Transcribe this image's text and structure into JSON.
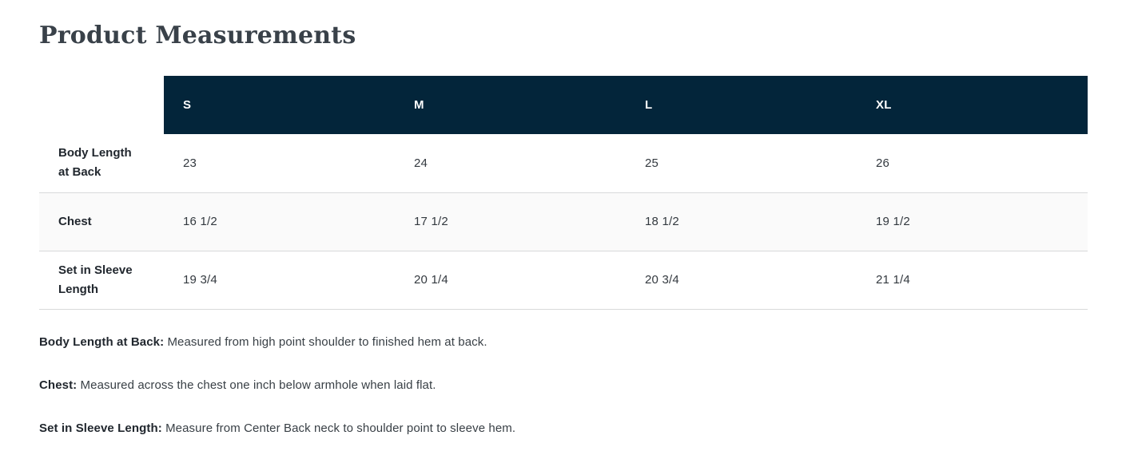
{
  "page": {
    "title": "Product Measurements"
  },
  "table": {
    "columns": [
      "S",
      "M",
      "L",
      "XL"
    ],
    "rows": [
      {
        "label": "Body Length at Back",
        "values": [
          "23",
          "24",
          "25",
          "26"
        ]
      },
      {
        "label": "Chest",
        "values": [
          "16 1/2",
          "17 1/2",
          "18 1/2",
          "19 1/2"
        ]
      },
      {
        "label": "Set in Sleeve Length",
        "values": [
          "19 3/4",
          "20 1/4",
          "20 3/4",
          "21 1/4"
        ]
      }
    ]
  },
  "footnotes": [
    {
      "term": "Body Length at Back:",
      "definition": " Measured from high point shoulder to finished hem at back."
    },
    {
      "term": "Chest:",
      "definition": " Measured across the chest one inch below armhole when laid flat."
    },
    {
      "term": "Set in Sleeve Length:",
      "definition": " Measure from Center Back neck to shoulder point to sleeve hem."
    }
  ],
  "colors": {
    "header_bg": "#03253a",
    "row_alt_bg": "#fafafa",
    "border": "#d8d9da"
  }
}
